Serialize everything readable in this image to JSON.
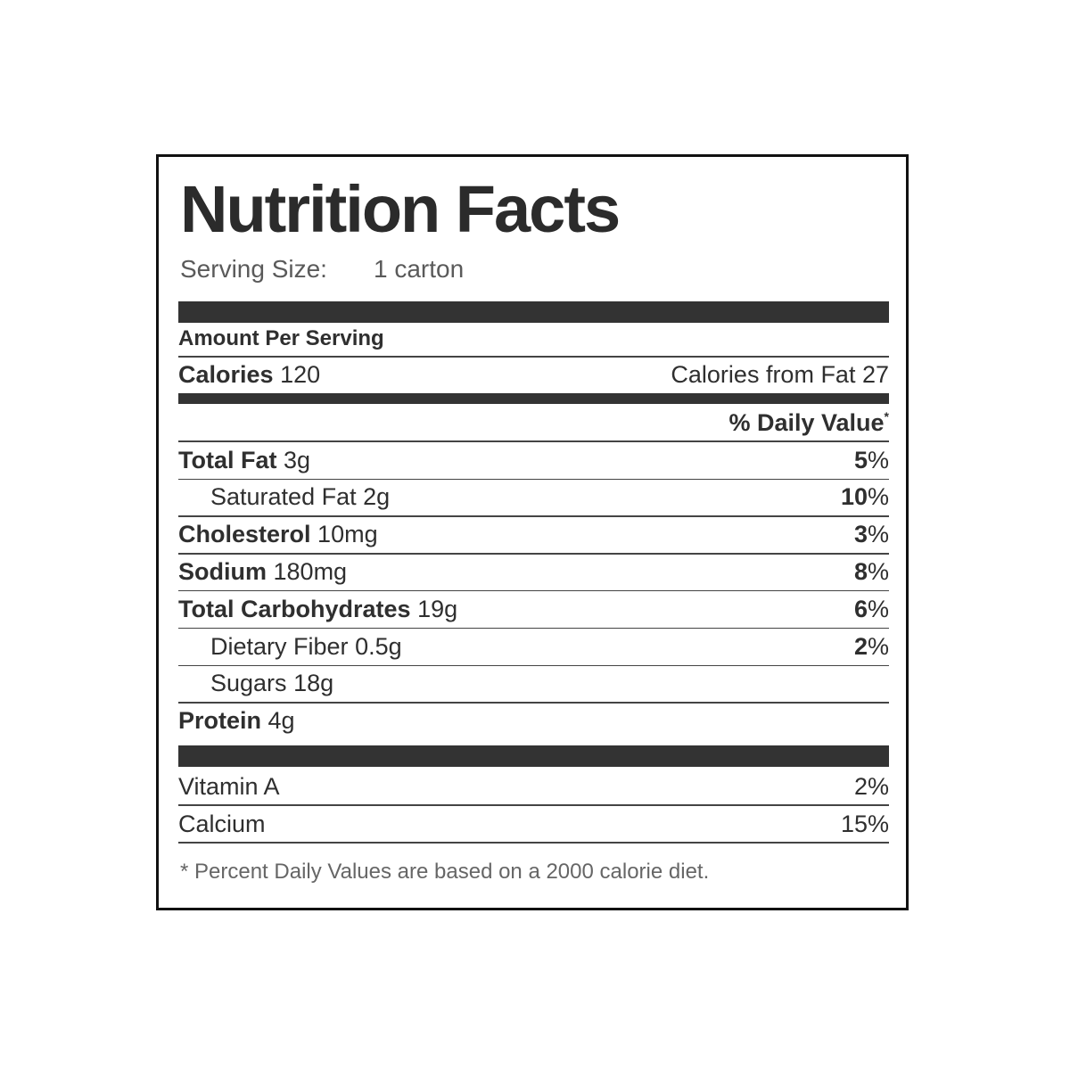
{
  "title": "Nutrition Facts",
  "serving": {
    "label": "Serving Size:",
    "value": "1 carton"
  },
  "amount_per_serving": "Amount Per Serving",
  "calories": {
    "label": "Calories",
    "value": "120",
    "from_fat": "Calories from Fat 27"
  },
  "daily_value_header": "% Daily Value",
  "daily_value_mark": "*",
  "nutrients": [
    {
      "name": "Total Fat",
      "amount": "3g",
      "dv": "5",
      "unit": "%"
    },
    {
      "name": "Saturated Fat",
      "amount": "2g",
      "dv": "10",
      "unit": "%"
    },
    {
      "name": "Cholesterol",
      "amount": "10mg",
      "dv": "3",
      "unit": "%"
    },
    {
      "name": "Sodium",
      "amount": "180mg",
      "dv": "8",
      "unit": "%"
    },
    {
      "name": "Total Carbohydrates",
      "amount": "19g",
      "dv": "6",
      "unit": "%"
    },
    {
      "name": "Dietary Fiber",
      "amount": "0.5g",
      "dv": "2",
      "unit": "%"
    },
    {
      "name": "Sugars",
      "amount": "18g"
    },
    {
      "name": "Protein",
      "amount": "4g"
    }
  ],
  "vitamins": [
    {
      "name": "Vitamin A",
      "dv": "2%"
    },
    {
      "name": "Calcium",
      "dv": "15%"
    }
  ],
  "footnote": "* Percent Daily Values are based on a 2000 calorie diet."
}
